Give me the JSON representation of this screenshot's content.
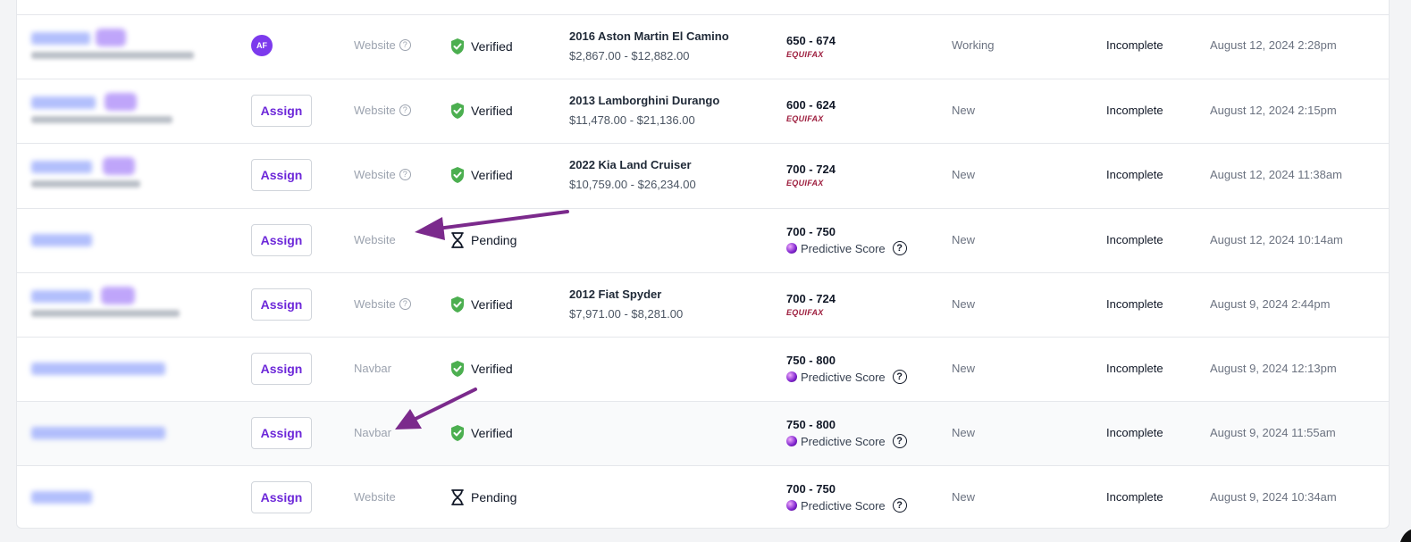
{
  "assign_label": "Assign",
  "colors": {
    "accent": "#6d28d9",
    "verified": "#4caf50",
    "arrow": "#7b2a8c",
    "equifax": "#9d1d3d"
  },
  "rows": [
    {
      "avatar": "AF",
      "assign": false,
      "source": "Website",
      "source_help": true,
      "verify": "Verified",
      "vehicle": "2016 Aston Martin El Camino",
      "price": "$2,867.00 - $12,882.00",
      "score": "650 - 674",
      "bureau": "EQUIFAX",
      "status": "Working",
      "completion": "Incomplete",
      "date": "August 12, 2024 2:28pm"
    },
    {
      "assign": true,
      "source": "Website",
      "source_help": true,
      "verify": "Verified",
      "vehicle": "2013 Lamborghini Durango",
      "price": "$11,478.00 - $21,136.00",
      "score": "600 - 624",
      "bureau": "EQUIFAX",
      "status": "New",
      "completion": "Incomplete",
      "date": "August 12, 2024 2:15pm"
    },
    {
      "assign": true,
      "source": "Website",
      "source_help": true,
      "verify": "Verified",
      "vehicle": "2022 Kia Land Cruiser",
      "price": "$10,759.00 - $26,234.00",
      "score": "700 - 724",
      "bureau": "EQUIFAX",
      "status": "New",
      "completion": "Incomplete",
      "date": "August 12, 2024 11:38am"
    },
    {
      "assign": true,
      "source": "Website",
      "source_help": false,
      "verify": "Pending",
      "vehicle": "",
      "price": "",
      "score": "700 - 750",
      "predictive": "Predictive Score",
      "status": "New",
      "completion": "Incomplete",
      "date": "August 12, 2024 10:14am"
    },
    {
      "assign": true,
      "source": "Website",
      "source_help": true,
      "verify": "Verified",
      "vehicle": "2012 Fiat Spyder",
      "price": "$7,971.00 - $8,281.00",
      "score": "700 - 724",
      "bureau": "EQUIFAX",
      "status": "New",
      "completion": "Incomplete",
      "date": "August 9, 2024 2:44pm"
    },
    {
      "assign": true,
      "source": "Navbar",
      "source_help": false,
      "verify": "Verified",
      "vehicle": "",
      "price": "",
      "score": "750 - 800",
      "predictive": "Predictive Score",
      "status": "New",
      "completion": "Incomplete",
      "date": "August 9, 2024 12:13pm"
    },
    {
      "assign": true,
      "source": "Navbar",
      "source_help": false,
      "verify": "Verified",
      "vehicle": "",
      "price": "",
      "score": "750 - 800",
      "predictive": "Predictive Score",
      "status": "New",
      "completion": "Incomplete",
      "date": "August 9, 2024 11:55am"
    },
    {
      "assign": true,
      "source": "Website",
      "source_help": false,
      "verify": "Pending",
      "vehicle": "",
      "price": "",
      "score": "700 - 750",
      "predictive": "Predictive Score",
      "status": "New",
      "completion": "Incomplete",
      "date": "August 9, 2024 10:34am"
    }
  ]
}
